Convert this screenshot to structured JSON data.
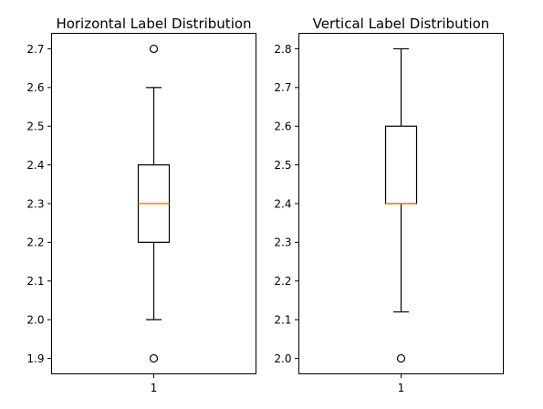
{
  "chart_data": [
    {
      "type": "box",
      "title": "Horizontal Label Distribution",
      "xlabel": "",
      "ylabel": "",
      "categories": [
        "1"
      ],
      "ylim": [
        1.86,
        2.74
      ],
      "yticks": [
        "1.9",
        "2.0",
        "2.1",
        "2.2",
        "2.3",
        "2.4",
        "2.5",
        "2.6",
        "2.7"
      ],
      "box": {
        "whisker_low": 2.0,
        "q1": 2.2,
        "median": 2.3,
        "q3": 2.4,
        "whisker_high": 2.6,
        "outliers": [
          1.9,
          2.7
        ]
      }
    },
    {
      "type": "box",
      "title": "Vertical Label Distribution",
      "xlabel": "",
      "ylabel": "",
      "categories": [
        "1"
      ],
      "ylim": [
        1.96,
        2.84
      ],
      "yticks": [
        "2.0",
        "2.1",
        "2.2",
        "2.3",
        "2.4",
        "2.5",
        "2.6",
        "2.7",
        "2.8"
      ],
      "box": {
        "whisker_low": 2.12,
        "q1": 2.4,
        "median": 2.4,
        "q3": 2.6,
        "whisker_high": 2.8,
        "outliers": [
          2.0
        ]
      }
    }
  ],
  "colors": {
    "box_stroke": "#000000",
    "median": "#ff7f0e",
    "background": "#ffffff"
  }
}
